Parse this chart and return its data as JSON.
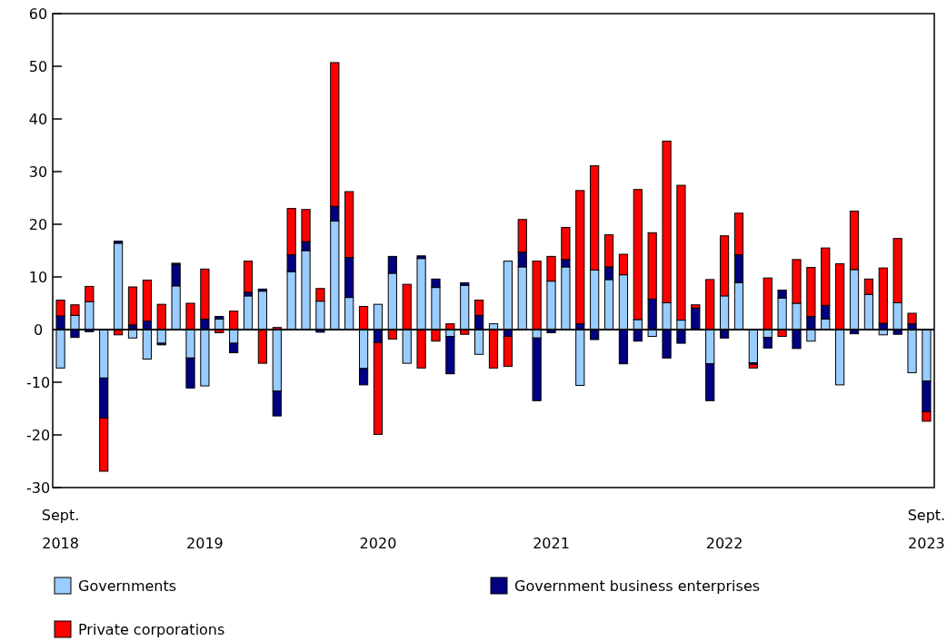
{
  "chart_data": {
    "type": "bar",
    "stacked": true,
    "categories": [
      "Sept.\n2018",
      null,
      null,
      null,
      null,
      null,
      null,
      null,
      null,
      null,
      "2019",
      null,
      null,
      null,
      null,
      null,
      null,
      null,
      null,
      null,
      null,
      null,
      "2020",
      null,
      null,
      null,
      null,
      null,
      null,
      null,
      null,
      null,
      null,
      null,
      "2021",
      null,
      null,
      null,
      null,
      null,
      null,
      null,
      null,
      null,
      null,
      null,
      "2022",
      null,
      null,
      null,
      null,
      null,
      null,
      null,
      null,
      null,
      null,
      null,
      null,
      null,
      "Sept.\n2023"
    ],
    "series": [
      {
        "name": "Governments",
        "color": "#99ccff",
        "values": [
          -7.3,
          2.7,
          5.3,
          -9.2,
          16.4,
          -1.6,
          -5.6,
          -2.6,
          8.3,
          -5.4,
          -10.7,
          2.0,
          -2.6,
          6.4,
          7.3,
          -11.7,
          11.0,
          15.0,
          5.4,
          20.6,
          6.1,
          -7.4,
          4.8,
          10.7,
          -6.4,
          13.5,
          8.0,
          -1.3,
          8.4,
          -4.7,
          1.1,
          13.0,
          11.9,
          -1.6,
          9.2,
          11.9,
          -10.6,
          11.3,
          9.5,
          10.4,
          1.9,
          -1.3,
          5.1,
          1.8,
          0,
          -6.5,
          6.4,
          8.9,
          -6.3,
          -1.5,
          6.0,
          5.0,
          -2.2,
          2.0,
          -10.5,
          11.4,
          6.7,
          -1.0,
          5.1,
          -8.2,
          -9.8
        ]
      },
      {
        "name": "Government business enterprises",
        "color": "#000080",
        "values": [
          2.6,
          -1.5,
          -0.4,
          -7.6,
          0.4,
          0.9,
          1.6,
          -0.3,
          4.1,
          -5.7,
          2.0,
          0.5,
          -1.8,
          0.7,
          0.4,
          -4.7,
          3.2,
          1.7,
          -0.5,
          2.8,
          7.6,
          -3.1,
          -2.5,
          3.2,
          null,
          0.5,
          1.6,
          -7.1,
          0.5,
          2.7,
          null,
          -1.3,
          2.8,
          -11.9,
          -0.6,
          1.4,
          1.1,
          -1.9,
          2.4,
          -6.5,
          -2.2,
          5.8,
          -5.4,
          -2.6,
          4.1,
          -7.0,
          -1.6,
          5.3,
          -0.3,
          -2.0,
          1.5,
          -3.6,
          2.5,
          2.6,
          0,
          -0.8,
          null,
          1.2,
          -0.9,
          1.1,
          -5.8
        ]
      },
      {
        "name": "Private corporations",
        "color": "#ff0000",
        "values": [
          3.0,
          2.0,
          2.9,
          -10.1,
          -1.0,
          7.2,
          7.8,
          4.8,
          0.2,
          5.0,
          9.5,
          -0.6,
          3.5,
          5.9,
          -6.4,
          0.4,
          8.8,
          6.1,
          2.4,
          27.3,
          12.5,
          4.4,
          -17.4,
          -1.8,
          8.6,
          -7.3,
          -2.2,
          1.1,
          -0.9,
          2.9,
          -7.3,
          -5.7,
          6.2,
          13.0,
          4.7,
          6.1,
          25.3,
          19.8,
          6.1,
          3.9,
          24.7,
          12.6,
          30.7,
          25.6,
          0.6,
          9.5,
          11.4,
          7.9,
          -0.7,
          9.8,
          -1.3,
          8.3,
          9.3,
          10.9,
          12.5,
          11.1,
          2.9,
          10.5,
          12.2,
          2.0,
          -1.8
        ]
      }
    ],
    "ylim": [
      -30,
      60
    ],
    "yticks": [
      -30,
      -20,
      -10,
      0,
      10,
      20,
      30,
      40,
      50,
      60
    ],
    "legend": "bottom"
  }
}
